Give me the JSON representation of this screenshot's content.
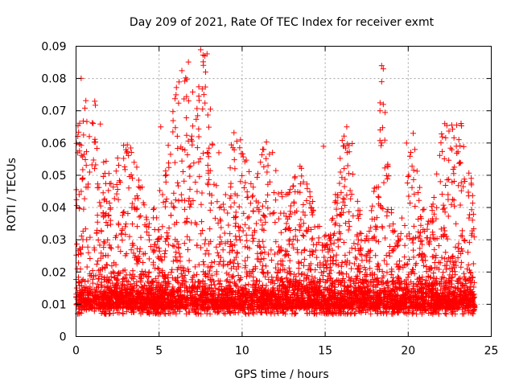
{
  "chart_data": {
    "type": "scatter",
    "title": "Day 209 of 2021, Rate Of TEC Index for receiver exmt",
    "xlabel": "GPS time / hours",
    "ylabel": "ROTI / TECUs",
    "xlim": [
      0,
      25
    ],
    "ylim": [
      0,
      0.09
    ],
    "x_ticks": [
      "0",
      "5",
      "10",
      "15",
      "20",
      "25"
    ],
    "y_ticks": [
      "0",
      "0.01",
      "0.02",
      "0.03",
      "0.04",
      "0.05",
      "0.06",
      "0.07",
      "0.08",
      "0.09"
    ],
    "grid": true,
    "marker": "plus",
    "color": "#ff0000",
    "notable_points": [
      {
        "x": 7.75,
        "y": 0.087
      },
      {
        "x": 7.8,
        "y": 0.082
      },
      {
        "x": 7.7,
        "y": 0.075
      },
      {
        "x": 18.4,
        "y": 0.084
      },
      {
        "x": 18.5,
        "y": 0.083
      },
      {
        "x": 18.4,
        "y": 0.079
      },
      {
        "x": 18.3,
        "y": 0.07
      },
      {
        "x": 18.5,
        "y": 0.072
      },
      {
        "x": 0.8,
        "y": 0.062
      },
      {
        "x": 5.1,
        "y": 0.065
      },
      {
        "x": 9.9,
        "y": 0.061
      },
      {
        "x": 11.3,
        "y": 0.058
      },
      {
        "x": 16.3,
        "y": 0.065
      },
      {
        "x": 20.3,
        "y": 0.063
      },
      {
        "x": 22.2,
        "y": 0.066
      },
      {
        "x": 14.9,
        "y": 0.059
      },
      {
        "x": 19.9,
        "y": 0.06
      },
      {
        "x": 20.4,
        "y": 0.058
      },
      {
        "x": 0.1,
        "y": 0.057
      },
      {
        "x": 3.5,
        "y": 0.054
      },
      {
        "x": 8.6,
        "y": 0.057
      }
    ]
  }
}
